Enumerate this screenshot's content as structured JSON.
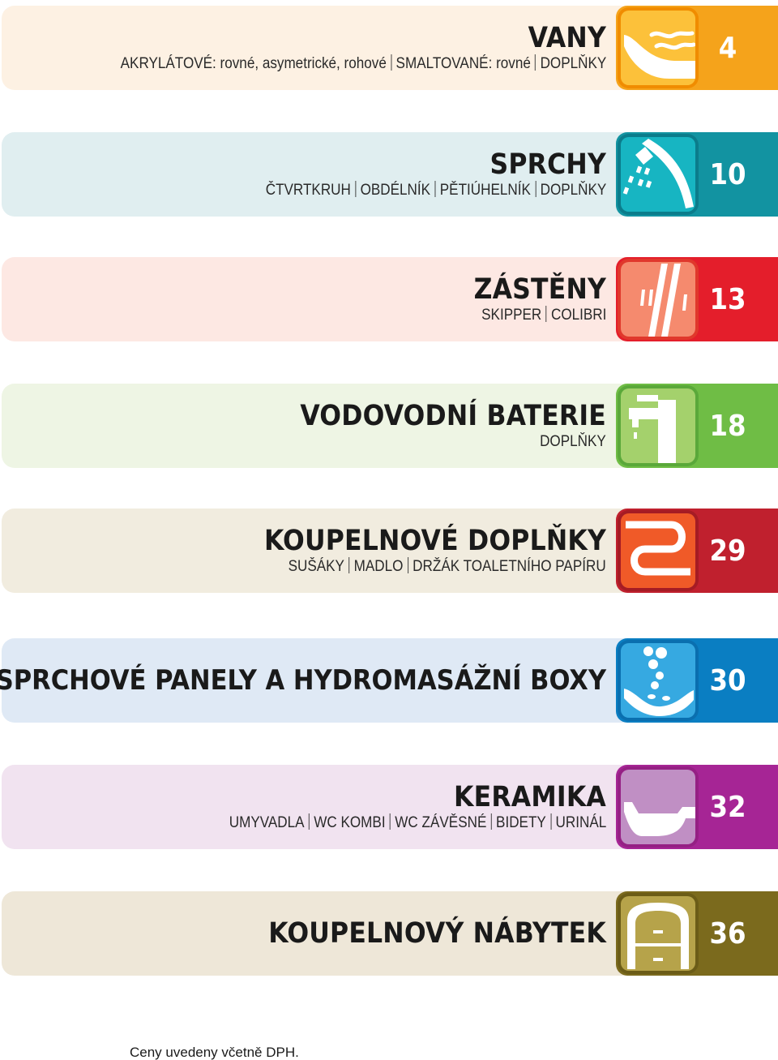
{
  "sections": [
    {
      "title": "VANY",
      "subtitle": [
        "AKRYLÁTOVÉ: rovné, asymetrické, rohové",
        "SMALTOVANÉ: rovné",
        "DOPLŇKY"
      ],
      "page": "4",
      "icon": "bathtub-icon",
      "colors": {
        "band": "#fdf1e3",
        "tile": "#f5a31b",
        "icon_bg": "#fcc13a",
        "frame": "#f08c00"
      }
    },
    {
      "title": "SPRCHY",
      "subtitle": [
        "ČTVRTKRUH",
        "OBDÉLNÍK",
        "PĚTIÚHELNÍK",
        "DOPLŇKY"
      ],
      "page": "10",
      "icon": "shower-icon",
      "colors": {
        "band": "#e0eef0",
        "tile": "#1293a1",
        "icon_bg": "#17b5c2",
        "frame": "#0b7c8b"
      }
    },
    {
      "title": "ZÁSTĚNY",
      "subtitle": [
        "SKIPPER",
        "COLIBRI"
      ],
      "page": "13",
      "icon": "shower-screen-icon",
      "colors": {
        "band": "#fde8e3",
        "tile": "#e41e2b",
        "icon_bg": "#f58a6e",
        "frame": "#e0382c"
      }
    },
    {
      "title": "VODOVODNÍ BATERIE",
      "subtitle": [
        "DOPLŇKY"
      ],
      "page": "18",
      "icon": "faucet-icon",
      "colors": {
        "band": "#eef5e4",
        "tile": "#6fbd45",
        "icon_bg": "#a4d16c",
        "frame": "#5aa83a"
      }
    },
    {
      "title": "KOUPELNOVÉ DOPLŇKY",
      "subtitle": [
        "SUŠÁKY",
        "MADLO",
        "DRŽÁK TOALETNÍHO PAPÍRU"
      ],
      "page": "29",
      "icon": "towel-rail-icon",
      "colors": {
        "band": "#f1ecdf",
        "tile": "#c0202e",
        "icon_bg": "#f05a28",
        "frame": "#a51c24"
      }
    },
    {
      "title": "SPRCHOVÉ PANELY A HYDROMASÁŽNÍ BOXY",
      "subtitle": [],
      "page": "30",
      "icon": "hydromassage-icon",
      "colors": {
        "band": "#dfe9f5",
        "tile": "#0a7ec2",
        "icon_bg": "#36a9e1",
        "frame": "#0a6faf"
      }
    },
    {
      "title": "KERAMIKA",
      "subtitle": [
        "UMYVADLA",
        "WC KOMBI",
        "WC ZÁVĚSNÉ",
        "BIDETY",
        "URINÁL"
      ],
      "page": "32",
      "icon": "washbasin-icon",
      "colors": {
        "band": "#f1e3f0",
        "tile": "#a62595",
        "icon_bg": "#c08fc4",
        "frame": "#952084"
      }
    },
    {
      "title": "KOUPELNOVÝ NÁBYTEK",
      "subtitle": [],
      "page": "36",
      "icon": "cabinet-icon",
      "colors": {
        "band": "#eee7d8",
        "tile": "#7b6a1d",
        "icon_bg": "#b6a34a",
        "frame": "#6b5c17"
      }
    }
  ],
  "footer": "Ceny uvedeny včetně DPH."
}
